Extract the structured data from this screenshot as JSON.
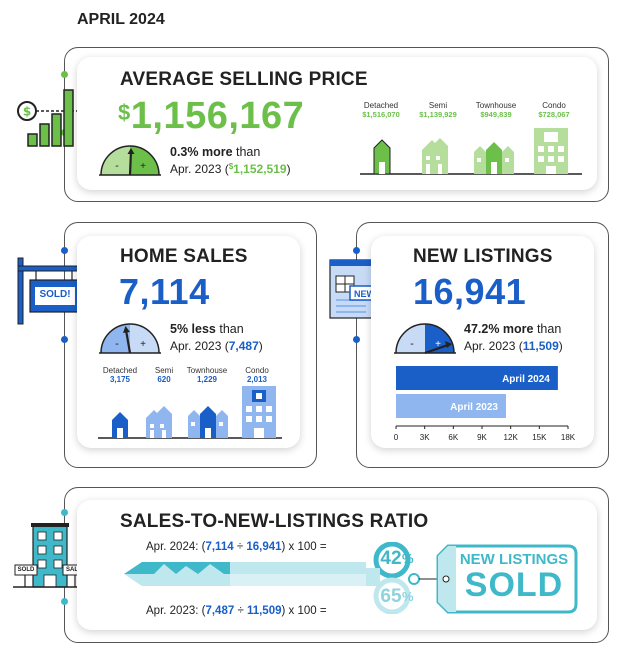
{
  "header": {
    "date": "APRIL 2024"
  },
  "avg_price": {
    "title": "AVERAGE SELLING PRICE",
    "currency": "$",
    "value": "1,156,167",
    "change": "0.3% more",
    "change_suffix": " than",
    "compare_label": "Apr. 2023 (",
    "compare_currency": "$",
    "compare_value": "1,152,519",
    "compare_close": ")",
    "types": [
      {
        "label": "Detached",
        "value": "$1,516,070"
      },
      {
        "label": "Semi",
        "value": "$1,139,929"
      },
      {
        "label": "Townhouse",
        "value": "$949,839"
      },
      {
        "label": "Condo",
        "value": "$728,067"
      }
    ]
  },
  "home_sales": {
    "title": "HOME SALES",
    "value": "7,114",
    "change": "5% less",
    "change_suffix": " than",
    "compare_label": "Apr. 2023 (",
    "compare_value": "7,487",
    "compare_close": ")",
    "sign_text": "SOLD!",
    "types": [
      {
        "label": "Detached",
        "value": "3,175"
      },
      {
        "label": "Semi",
        "value": "620"
      },
      {
        "label": "Townhouse",
        "value": "1,229"
      },
      {
        "label": "Condo",
        "value": "2,013"
      }
    ]
  },
  "new_listings": {
    "title": "NEW LISTINGS",
    "value": "16,941",
    "change": "47.2% more",
    "change_suffix": " than",
    "compare_label": "Apr. 2023 (",
    "compare_value": "11,509",
    "compare_close": ")",
    "paper_badge": "NEW!",
    "chart_data": {
      "type": "bar",
      "orientation": "horizontal",
      "categories": [
        "April 2024",
        "April 2023"
      ],
      "values": [
        16941,
        11509
      ],
      "xlim": [
        0,
        18000
      ],
      "ticks": [
        "0",
        "3K",
        "6K",
        "9K",
        "12K",
        "15K",
        "18K"
      ]
    }
  },
  "ratio": {
    "title": "SALES-TO-NEW-LISTINGS RATIO",
    "eq_2024_prefix": "Apr. 2024: (",
    "eq_2024_a": "7,114",
    "eq_2024_div": " ÷ ",
    "eq_2024_b": "16,941",
    "eq_2024_suffix": ") x 100 =",
    "eq_2023_prefix": "Apr. 2023: (",
    "eq_2023_a": "7,487",
    "eq_2023_div": " ÷ ",
    "eq_2023_b": "11,509",
    "eq_2023_suffix": ") x 100 =",
    "pct_2024": "42",
    "pct_2023": "65",
    "pct_sign": "%",
    "tag_line1": "NEW LISTINGS",
    "tag_line2": "SOLD",
    "sign_sold": "SOLD",
    "sign_sale": "SALE"
  },
  "colors": {
    "green": "#6cc04a",
    "blue": "#1a5ec7",
    "teal": "#3fb8c9",
    "light_blue": "#8fb6ee",
    "light_green": "#b5dd9c"
  }
}
